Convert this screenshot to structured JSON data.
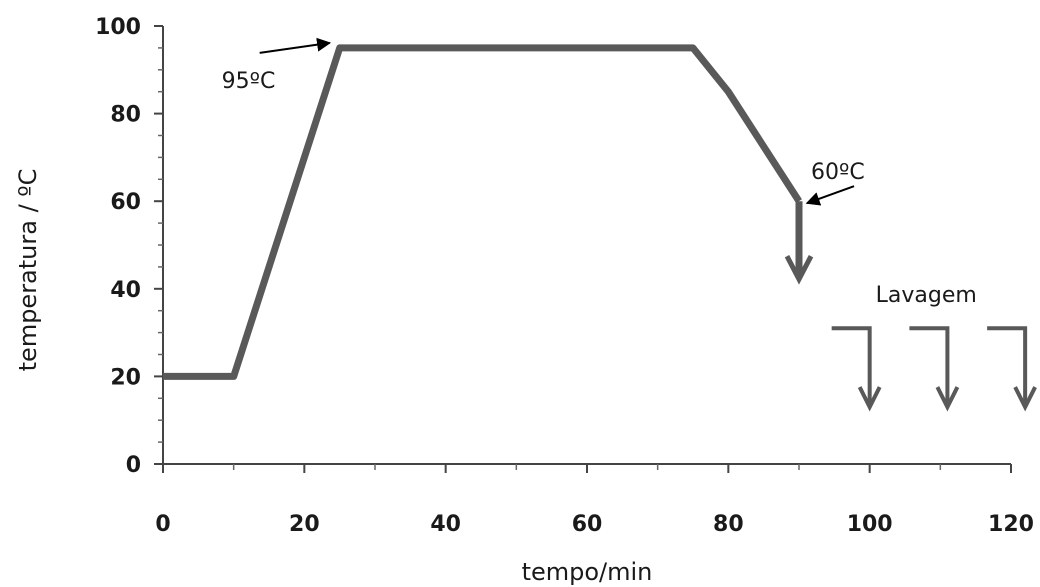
{
  "chart_data": {
    "type": "line",
    "xlabel": "tempo/min",
    "ylabel": "temperatura / ºC",
    "xlim": [
      0,
      120
    ],
    "ylim": [
      0,
      100
    ],
    "xticks": [
      0,
      20,
      40,
      60,
      80,
      100,
      120
    ],
    "yticks": [
      0,
      20,
      40,
      60,
      80,
      100
    ],
    "grid": false,
    "series": [
      {
        "x": [
          0,
          10,
          25,
          75,
          80,
          90
        ],
        "y": [
          20,
          20,
          95,
          95,
          85,
          60
        ]
      }
    ],
    "annotations": [
      {
        "text": "95ºC",
        "x": 25,
        "y": 95
      },
      {
        "text": "60ºC",
        "x": 90,
        "y": 60
      },
      {
        "text": "Lavagem",
        "x": 108,
        "y": 37
      }
    ],
    "wash_steps": [
      100,
      111,
      122
    ]
  }
}
